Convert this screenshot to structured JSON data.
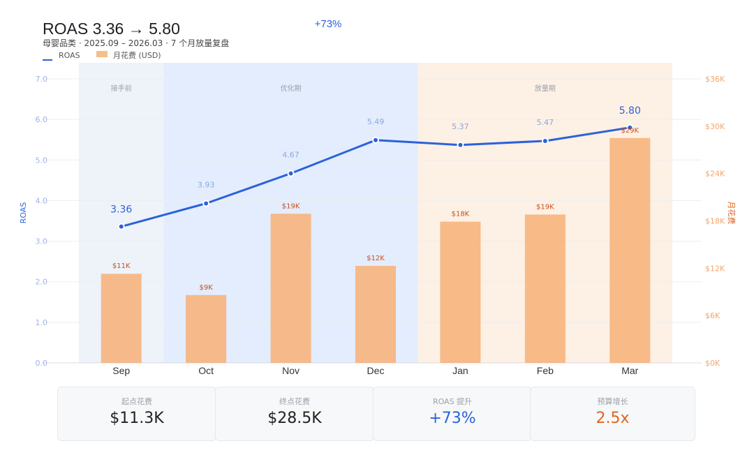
{
  "header": {
    "title": "ROAS 3.36 → 5.80",
    "subtitle": "母婴品类 · 2025.09 – 2026.03 · 7 个月放量复盘",
    "lift_badge": "+73%"
  },
  "chart_data": {
    "type": "bar+line",
    "categories": [
      "Sep",
      "Oct",
      "Nov",
      "Dec",
      "Jan",
      "Feb",
      "Mar"
    ],
    "series": [
      {
        "name": "ROAS",
        "axis": "left",
        "kind": "line",
        "values": [
          3.36,
          3.93,
          4.67,
          5.49,
          5.37,
          5.47,
          5.8
        ],
        "labels": [
          "3.36",
          "3.93",
          "4.67",
          "5.49",
          "5.37",
          "5.47",
          "5.80"
        ],
        "color": "#2b62d9"
      },
      {
        "name": "月花费 (USD)",
        "axis": "right",
        "kind": "bar",
        "values": [
          11300,
          8600,
          18900,
          12300,
          17900,
          18800,
          28500
        ],
        "labels": [
          "$11K",
          "$9K",
          "$19K",
          "$12K",
          "$18K",
          "$19K",
          "$29K"
        ],
        "color": "#f7a766"
      }
    ],
    "y_left": {
      "label": "ROAS",
      "min": 0,
      "max": 7,
      "ticks": [
        "0.0",
        "1.0",
        "2.0",
        "3.0",
        "4.0",
        "5.0",
        "6.0",
        "7.0"
      ]
    },
    "y_right": {
      "label": "月花费",
      "min": 0,
      "max": 36000,
      "ticks": [
        "$0K",
        "$6K",
        "$12K",
        "$18K",
        "$24K",
        "$30K",
        "$36K"
      ]
    },
    "phases": [
      {
        "label": "接手前",
        "from": "Sep",
        "to": "Sep",
        "color": "#eef2f9"
      },
      {
        "label": "优化期",
        "from": "Oct",
        "to": "Dec",
        "color": "#e3edfd"
      },
      {
        "label": "放量期",
        "from": "Jan",
        "to": "Mar",
        "color": "#fdf0e4"
      }
    ],
    "legend": {
      "position": "top-left"
    },
    "grid": true
  },
  "kpis": [
    {
      "label": "起点花费",
      "value": "$11.3K",
      "color": "#222222"
    },
    {
      "label": "终点花费",
      "value": "$28.5K",
      "color": "#222222"
    },
    {
      "label": "ROAS 提升",
      "value": "+73%",
      "color": "#2b62d9"
    },
    {
      "label": "预算增长",
      "value": "2.5x",
      "color": "#e0651e"
    }
  ]
}
